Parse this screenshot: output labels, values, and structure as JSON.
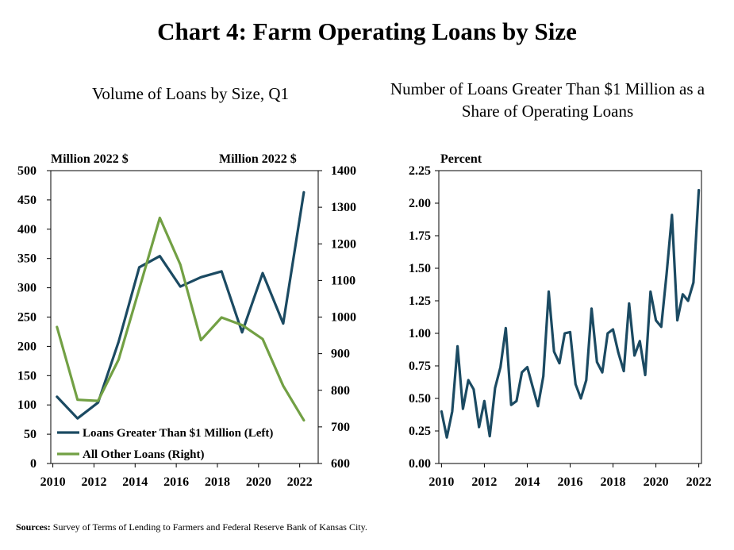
{
  "title": "Chart 4: Farm Operating Loans by Size",
  "source_label": "Sources:",
  "source_text": "Survey of Terms of Lending to Farmers and Federal Reserve Bank of Kansas City.",
  "colors": {
    "navy": "#1b4a62",
    "olive": "#72a044",
    "axis": "#000000"
  },
  "chart_data": [
    {
      "type": "line",
      "title": "Volume of Loans by Size, Q1",
      "left_unit": "Million  2022 $",
      "right_unit": "Million  2022 $",
      "x_ticks": [
        "2010",
        "2012",
        "2014",
        "2016",
        "2018",
        "2020",
        "2022"
      ],
      "x_range": [
        2009.9,
        2022.9
      ],
      "ylim_left": [
        0,
        500
      ],
      "ylim_right": [
        600,
        1400
      ],
      "y_ticks_left": [
        "0",
        "50",
        "100",
        "150",
        "200",
        "250",
        "300",
        "350",
        "400",
        "450",
        "500"
      ],
      "y_ticks_right": [
        "600",
        "700",
        "800",
        "900",
        "1000",
        "1100",
        "1200",
        "1300",
        "1400"
      ],
      "legend_position": "bottom-left",
      "series": [
        {
          "name": "Loans Greater Than $1 Million (Left)",
          "axis": "left",
          "color": "#1b4a62",
          "x": [
            2010.2,
            2011.2,
            2012.2,
            2013.2,
            2014.2,
            2015.2,
            2016.2,
            2017.2,
            2018.2,
            2019.2,
            2020.2,
            2021.2,
            2022.2
          ],
          "values": [
            114,
            77,
            104,
            208,
            335,
            354,
            302,
            318,
            328,
            224,
            325,
            239,
            463
          ]
        },
        {
          "name": "All Other Loans (Right)",
          "axis": "right",
          "color": "#72a044",
          "x": [
            2010.2,
            2011.2,
            2012.2,
            2013.2,
            2014.2,
            2015.2,
            2016.2,
            2017.2,
            2018.2,
            2019.2,
            2020.2,
            2021.2,
            2022.2
          ],
          "values": [
            973,
            774,
            771,
            884,
            1077,
            1271,
            1143,
            937,
            999,
            978,
            940,
            812,
            718
          ]
        }
      ]
    },
    {
      "type": "line",
      "title": "Number of Loans Greater Than $1 Million as a Share of Operating Loans",
      "left_unit": "Percent",
      "x_ticks": [
        "2010",
        "2012",
        "2014",
        "2016",
        "2018",
        "2020",
        "2022"
      ],
      "x_range": [
        2009.875,
        2022.125
      ],
      "ylim": [
        0,
        2.25
      ],
      "y_ticks": [
        "0.00",
        "0.25",
        "0.50",
        "0.75",
        "1.00",
        "1.25",
        "1.50",
        "1.75",
        "2.00",
        "2.25"
      ],
      "series": [
        {
          "color": "#1b4a62",
          "x": [
            2010.0,
            2010.25,
            2010.5,
            2010.75,
            2011.0,
            2011.25,
            2011.5,
            2011.75,
            2012.0,
            2012.25,
            2012.5,
            2012.75,
            2013.0,
            2013.25,
            2013.5,
            2013.75,
            2014.0,
            2014.25,
            2014.5,
            2014.75,
            2015.0,
            2015.25,
            2015.5,
            2015.75,
            2016.0,
            2016.25,
            2016.5,
            2016.75,
            2017.0,
            2017.25,
            2017.5,
            2017.75,
            2018.0,
            2018.25,
            2018.5,
            2018.75,
            2019.0,
            2019.25,
            2019.5,
            2019.75,
            2020.0,
            2020.25,
            2020.5,
            2020.75,
            2021.0,
            2021.25,
            2021.5,
            2021.75,
            2022.0
          ],
          "values": [
            0.4,
            0.2,
            0.4,
            0.9,
            0.42,
            0.64,
            0.57,
            0.28,
            0.48,
            0.21,
            0.58,
            0.74,
            1.04,
            0.45,
            0.48,
            0.7,
            0.74,
            0.59,
            0.44,
            0.67,
            1.32,
            0.86,
            0.77,
            1.0,
            1.01,
            0.61,
            0.5,
            0.64,
            1.19,
            0.78,
            0.7,
            1.0,
            1.03,
            0.85,
            0.71,
            1.23,
            0.83,
            0.94,
            0.68,
            1.32,
            1.1,
            1.05,
            1.46,
            1.91,
            1.1,
            1.3,
            1.25,
            1.39,
            2.1
          ]
        }
      ]
    }
  ]
}
